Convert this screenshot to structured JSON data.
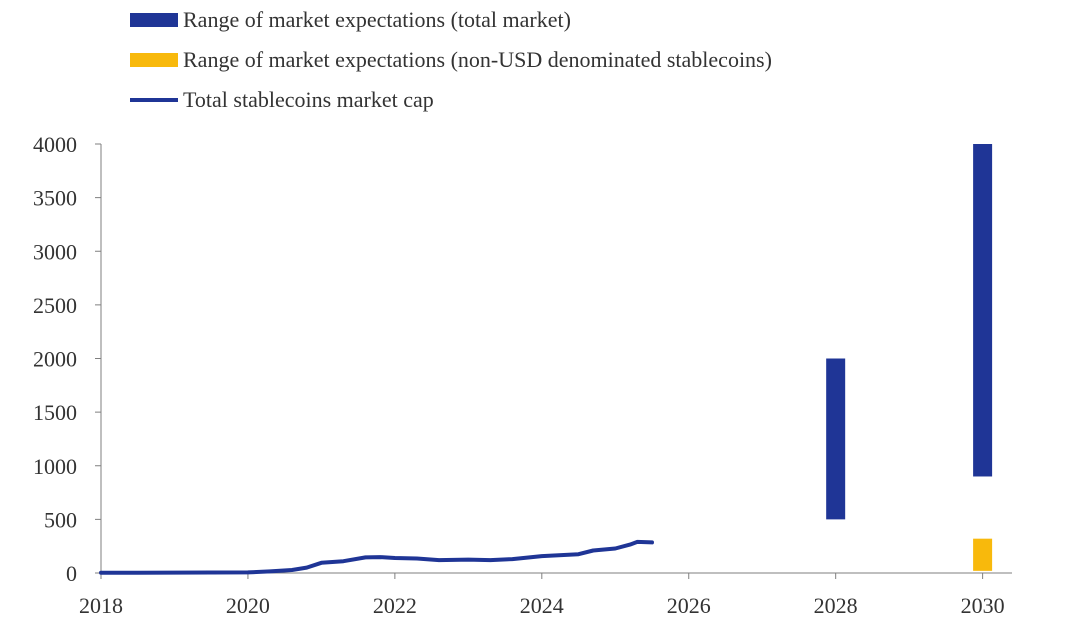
{
  "chart_data": {
    "type": "bar",
    "legend": {
      "placement": "top-left",
      "entries": [
        {
          "label": "Range of market expectations (total market)",
          "kind": "bar",
          "color": "#1f3596"
        },
        {
          "label": "Range of market expectations (non-USD denominated stablecoins)",
          "kind": "bar",
          "color": "#f8b90c"
        },
        {
          "label": "Total stablecoins market cap",
          "kind": "line",
          "color": "#1f3596"
        }
      ]
    },
    "xlim": [
      2018,
      2030.4
    ],
    "ylim": [
      0,
      4000
    ],
    "x_ticks": [
      "2018",
      "2020",
      "2022",
      "2024",
      "2026",
      "2028",
      "2030"
    ],
    "y_ticks": [
      "0",
      "500",
      "1000",
      "1500",
      "2000",
      "2500",
      "3000",
      "3500",
      "4000"
    ],
    "grid": false,
    "range_bars": [
      {
        "series": "Range of market expectations (total market)",
        "x": 2028,
        "low": 500,
        "high": 2000,
        "color": "#1f3596"
      },
      {
        "series": "Range of market expectations (total market)",
        "x": 2030,
        "low": 900,
        "high": 4000,
        "color": "#1f3596"
      },
      {
        "series": "Range of market expectations (non-USD denominated stablecoins)",
        "x": 2030,
        "low": 20,
        "high": 320,
        "color": "#f8b90c"
      }
    ],
    "line_series": {
      "name": "Total stablecoins market cap",
      "color": "#1f3596",
      "points": [
        [
          2018.0,
          2
        ],
        [
          2018.5,
          3
        ],
        [
          2019.0,
          4
        ],
        [
          2019.5,
          5
        ],
        [
          2020.0,
          6
        ],
        [
          2020.3,
          15
        ],
        [
          2020.6,
          28
        ],
        [
          2020.8,
          50
        ],
        [
          2021.0,
          95
        ],
        [
          2021.3,
          110
        ],
        [
          2021.6,
          145
        ],
        [
          2021.8,
          148
        ],
        [
          2022.0,
          140
        ],
        [
          2022.3,
          135
        ],
        [
          2022.6,
          120
        ],
        [
          2023.0,
          125
        ],
        [
          2023.3,
          120
        ],
        [
          2023.6,
          130
        ],
        [
          2024.0,
          158
        ],
        [
          2024.3,
          168
        ],
        [
          2024.5,
          175
        ],
        [
          2024.7,
          210
        ],
        [
          2025.0,
          228
        ],
        [
          2025.2,
          265
        ],
        [
          2025.3,
          290
        ],
        [
          2025.5,
          285
        ]
      ]
    }
  }
}
